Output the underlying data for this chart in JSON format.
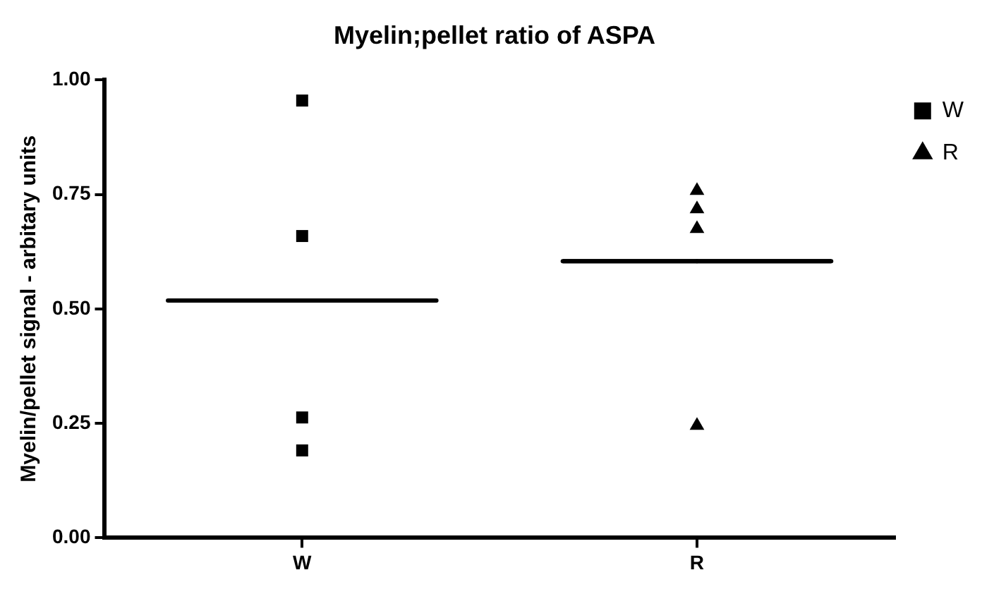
{
  "chart_data": {
    "type": "scatter",
    "title": "Myelin;pellet ratio of ASPA",
    "ylabel": "Myelin/pellet signal - arbitary units",
    "categories": [
      "W",
      "R"
    ],
    "ylim": [
      0,
      1
    ],
    "yticks": [
      {
        "value": 0,
        "label": "0.00"
      },
      {
        "value": 0.25,
        "label": "0.25"
      },
      {
        "value": 0.5,
        "label": "0.50"
      },
      {
        "value": 0.75,
        "label": "0.75"
      },
      {
        "value": 1,
        "label": "1.00"
      }
    ],
    "grid": false,
    "legend": "top right",
    "series": [
      {
        "name": "W",
        "color": "#000000",
        "marker": "square",
        "x": [
          "W",
          "W",
          "W",
          "W"
        ],
        "values": [
          0.955,
          0.659,
          0.263,
          0.191
        ]
      },
      {
        "name": "R",
        "color": "#000000",
        "marker": "triangle",
        "x": [
          "R",
          "R",
          "R",
          "R"
        ],
        "values": [
          0.758,
          0.718,
          0.675,
          0.245
        ]
      },
      {
        "type": "box",
        "color": "#000000",
        "boxes": [
          {
            "low": 0.518,
            "q1": 0.518,
            "median": 0.518,
            "q3": 0.518,
            "high": 0.518
          },
          {
            "low": 0.604,
            "q1": 0.604,
            "median": 0.604,
            "q3": 0.604,
            "high": 0.604
          }
        ]
      }
    ]
  }
}
